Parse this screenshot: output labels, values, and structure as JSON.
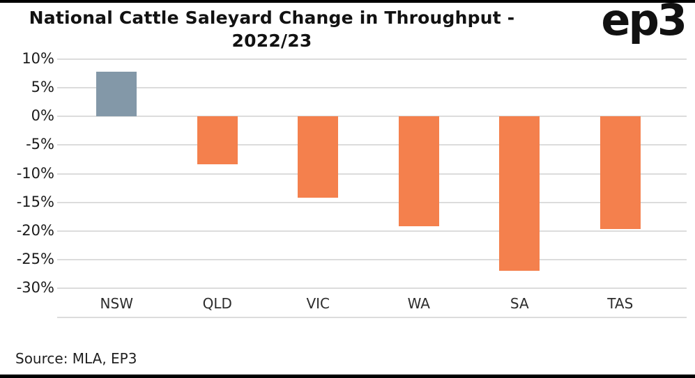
{
  "page": {
    "background": "#ffffff",
    "border_color": "#000000"
  },
  "header": {
    "title_line1": "National Cattle Saleyard Change in Throughput -",
    "title_line2": "2022/23",
    "logo_text": "ep3"
  },
  "footer": {
    "source": "Source: MLA, EP3"
  },
  "chart_data": {
    "type": "bar",
    "title": "National Cattle Saleyard Change in Throughput - 2022/23",
    "categories": [
      "NSW",
      "QLD",
      "VIC",
      "WA",
      "SA",
      "TAS"
    ],
    "values": [
      7.8,
      -8.3,
      -14.2,
      -19.2,
      -27.0,
      -19.7
    ],
    "bar_colors": [
      "#8398a8",
      "#f4804d",
      "#f4804d",
      "#f4804d",
      "#f4804d",
      "#f4804d"
    ],
    "xlabel": "",
    "ylabel": "",
    "ylim": [
      -30,
      10
    ],
    "ytick_step": 5,
    "ytick_suffix": "%",
    "grid": true,
    "gridline_color": "#dcdcdc",
    "legend": "none"
  }
}
